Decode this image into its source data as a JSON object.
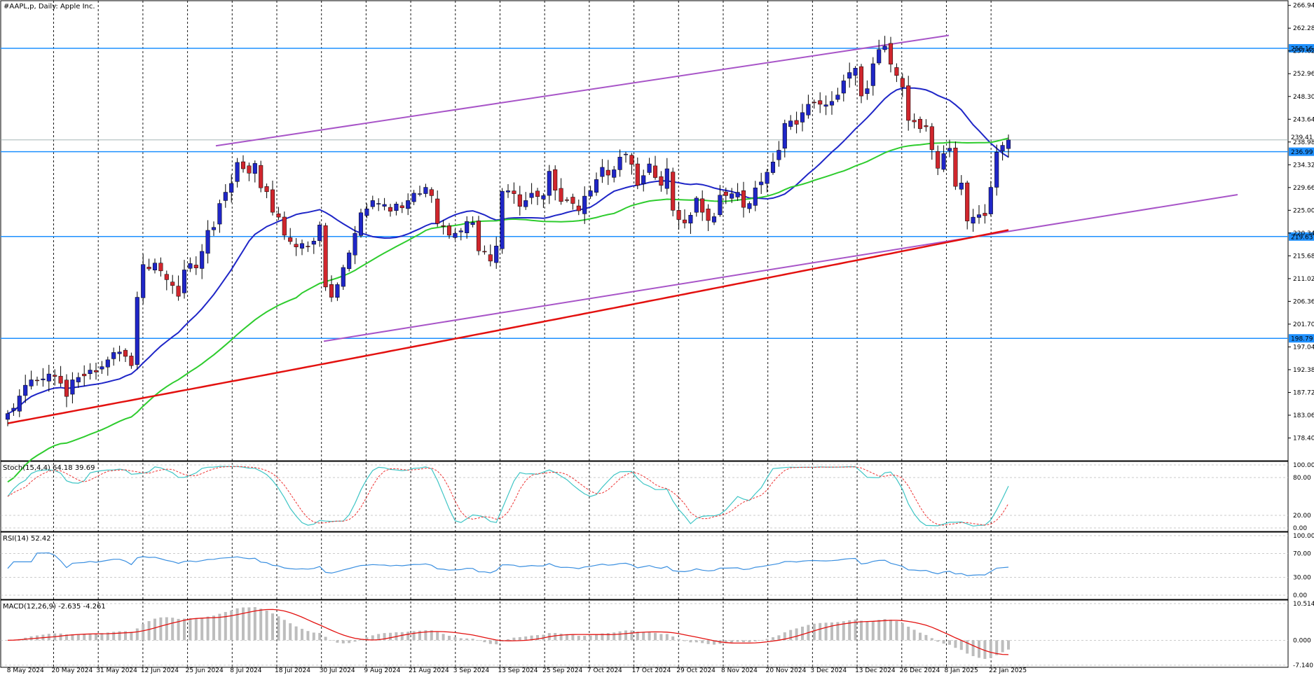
{
  "title": "#AAPL,p, Daily:  Apple Inc.",
  "colors": {
    "bull": "#1f26c7",
    "bear": "#d0262d",
    "ma_fast": "#1f26c7",
    "ma_mid": "#2ecc2e",
    "ma_slow": "#e3110f",
    "channel": "#a855c8",
    "hline": "#1e90ff",
    "stoch_main": "#3ec5c5",
    "stoch_signal": "#e33",
    "rsi": "#3a8fe0",
    "macd_hist": "#bdbdbd",
    "macd_signal": "#e3110f"
  },
  "price_panel": {
    "y_ticks": [
      "266.94",
      "262.28",
      "257.62",
      "252.96",
      "248.30",
      "243.64",
      "238.98",
      "234.32",
      "229.66",
      "225.00",
      "220.34",
      "215.68",
      "211.02",
      "206.36",
      "201.70",
      "197.04",
      "192.38",
      "187.72",
      "183.06",
      "178.40"
    ],
    "ylim": [
      173.74,
      267.9
    ]
  },
  "date_labels": [
    "8 May 2024",
    "20 May 2024",
    "31 May 2024",
    "12 Jun 2024",
    "25 Jun 2024",
    "8 Jul 2024",
    "18 Jul 2024",
    "30 Jul 2024",
    "9 Aug 2024",
    "21 Aug 2024",
    "3 Sep 2024",
    "13 Sep 2024",
    "25 Sep 2024",
    "7 Oct 2024",
    "17 Oct 2024",
    "29 Oct 2024",
    "8 Nov 2024",
    "20 Nov 2024",
    "3 Dec 2024",
    "13 Dec 2024",
    "26 Dec 2024",
    "8 Jan 2025",
    "22 Jan 2025"
  ],
  "stoch_panel": {
    "label": "Stoch(15,4,4) 64.18 39.69",
    "ticks": [
      "100.00",
      "80.00",
      "20.00",
      "0.00"
    ]
  },
  "rsi_panel": {
    "label": "RSI(14) 52.42",
    "ticks": [
      "100.00",
      "70.00",
      "30.00",
      "0.00"
    ]
  },
  "macd_panel": {
    "label": "MACD(12,26,9) -2.635 -4.261",
    "ticks": [
      "10.514",
      "0.000",
      "-7.140"
    ]
  },
  "chart_data": {
    "type": "candlestick",
    "title": "#AAPL,p, Daily:  Apple Inc.",
    "horizontal_levels": [
      {
        "value": 258.16,
        "label": "258.16"
      },
      {
        "value": 236.99,
        "label": "236.99"
      },
      {
        "value": 219.63,
        "label": "219.63"
      },
      {
        "value": 198.79,
        "label": "198.79"
      }
    ],
    "current_price_label": "239.41",
    "close_prices": [
      183.4,
      184.5,
      187.0,
      189.2,
      190.3,
      190.1,
      190.5,
      191.5,
      191.0,
      189.6,
      186.9,
      190.3,
      190.8,
      191.1,
      192.3,
      191.9,
      193.0,
      194.4,
      195.9,
      196.0,
      195.1,
      193.2,
      207.2,
      213.9,
      213.0,
      214.2,
      212.6,
      210.8,
      209.6,
      207.4,
      212.8,
      214.1,
      213.2,
      216.6,
      220.9,
      221.5,
      226.4,
      228.7,
      230.5,
      234.8,
      233.5,
      232.6,
      234.6,
      229.6,
      228.8,
      224.6,
      223.6,
      219.9,
      218.6,
      217.5,
      218.2,
      217.6,
      218.7,
      222.0,
      209.3,
      207.2,
      209.8,
      213.3,
      216.3,
      220.3,
      224.5,
      225.3,
      227.0,
      226.4,
      226.2,
      224.8,
      226.3,
      225.5,
      227.0,
      228.5,
      228.4,
      229.7,
      228.0,
      222.3,
      221.7,
      219.9,
      220.3,
      220.8,
      222.7,
      222.5,
      216.7,
      216.5,
      214.6,
      217.7,
      228.9,
      229.0,
      228.4,
      225.8,
      227.0,
      228.5,
      227.8,
      228.0,
      233.0,
      229.1,
      226.8,
      227.1,
      226.4,
      224.9,
      227.9,
      229.0,
      231.3,
      233.8,
      232.2,
      233.3,
      235.9,
      236.5,
      234.4,
      230.1,
      232.1,
      234.5,
      231.7,
      230.1,
      233.5,
      225.0,
      223.1,
      222.4,
      224.0,
      227.5,
      224.6,
      222.9,
      223.7,
      228.1,
      228.0,
      228.4,
      228.7,
      225.6,
      226.4,
      229.6,
      230.8,
      232.8,
      234.9,
      237.3,
      242.8,
      243.3,
      242.6,
      245.0,
      246.7,
      247.0,
      246.7,
      246.6,
      247.3,
      248.6,
      251.5,
      253.2,
      254.1,
      248.4,
      249.9,
      255.0,
      257.9,
      258.6,
      254.9,
      252.6,
      250.2,
      243.4,
      243.1,
      241.7,
      242.1,
      237.4,
      233.6,
      236.6,
      237.7,
      229.9,
      230.6,
      222.8,
      223.6,
      224.1,
      223.9,
      229.7,
      236.9,
      238.3,
      239.4
    ]
  }
}
